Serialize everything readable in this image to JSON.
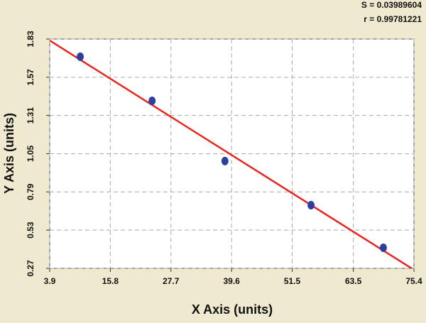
{
  "chart_data": {
    "type": "scatter",
    "annotations": [
      "S = 0.03989604",
      "r = 0.99781221"
    ],
    "x_label": "X Axis (units)",
    "y_label": "Y Axis (units)",
    "xlim": [
      3.9,
      75.4
    ],
    "xticks": [
      3.9,
      15.8,
      27.7,
      39.6,
      51.5,
      63.5,
      75.4
    ],
    "ylim": [
      0.27,
      1.83
    ],
    "yticks": [
      0.27,
      0.53,
      0.79,
      1.05,
      1.31,
      1.57,
      1.83
    ],
    "grid": true,
    "series": [
      {
        "mode": "markers",
        "color": "#2f3f9e",
        "x": [
          9.9,
          24.0,
          38.3,
          55.2,
          69.4
        ],
        "values": [
          1.71,
          1.41,
          1.0,
          0.7,
          0.41
        ]
      },
      {
        "mode": "line",
        "color": "#e8251f",
        "x": [
          3.9,
          75.4
        ],
        "values": [
          1.82,
          0.26
        ]
      }
    ]
  }
}
